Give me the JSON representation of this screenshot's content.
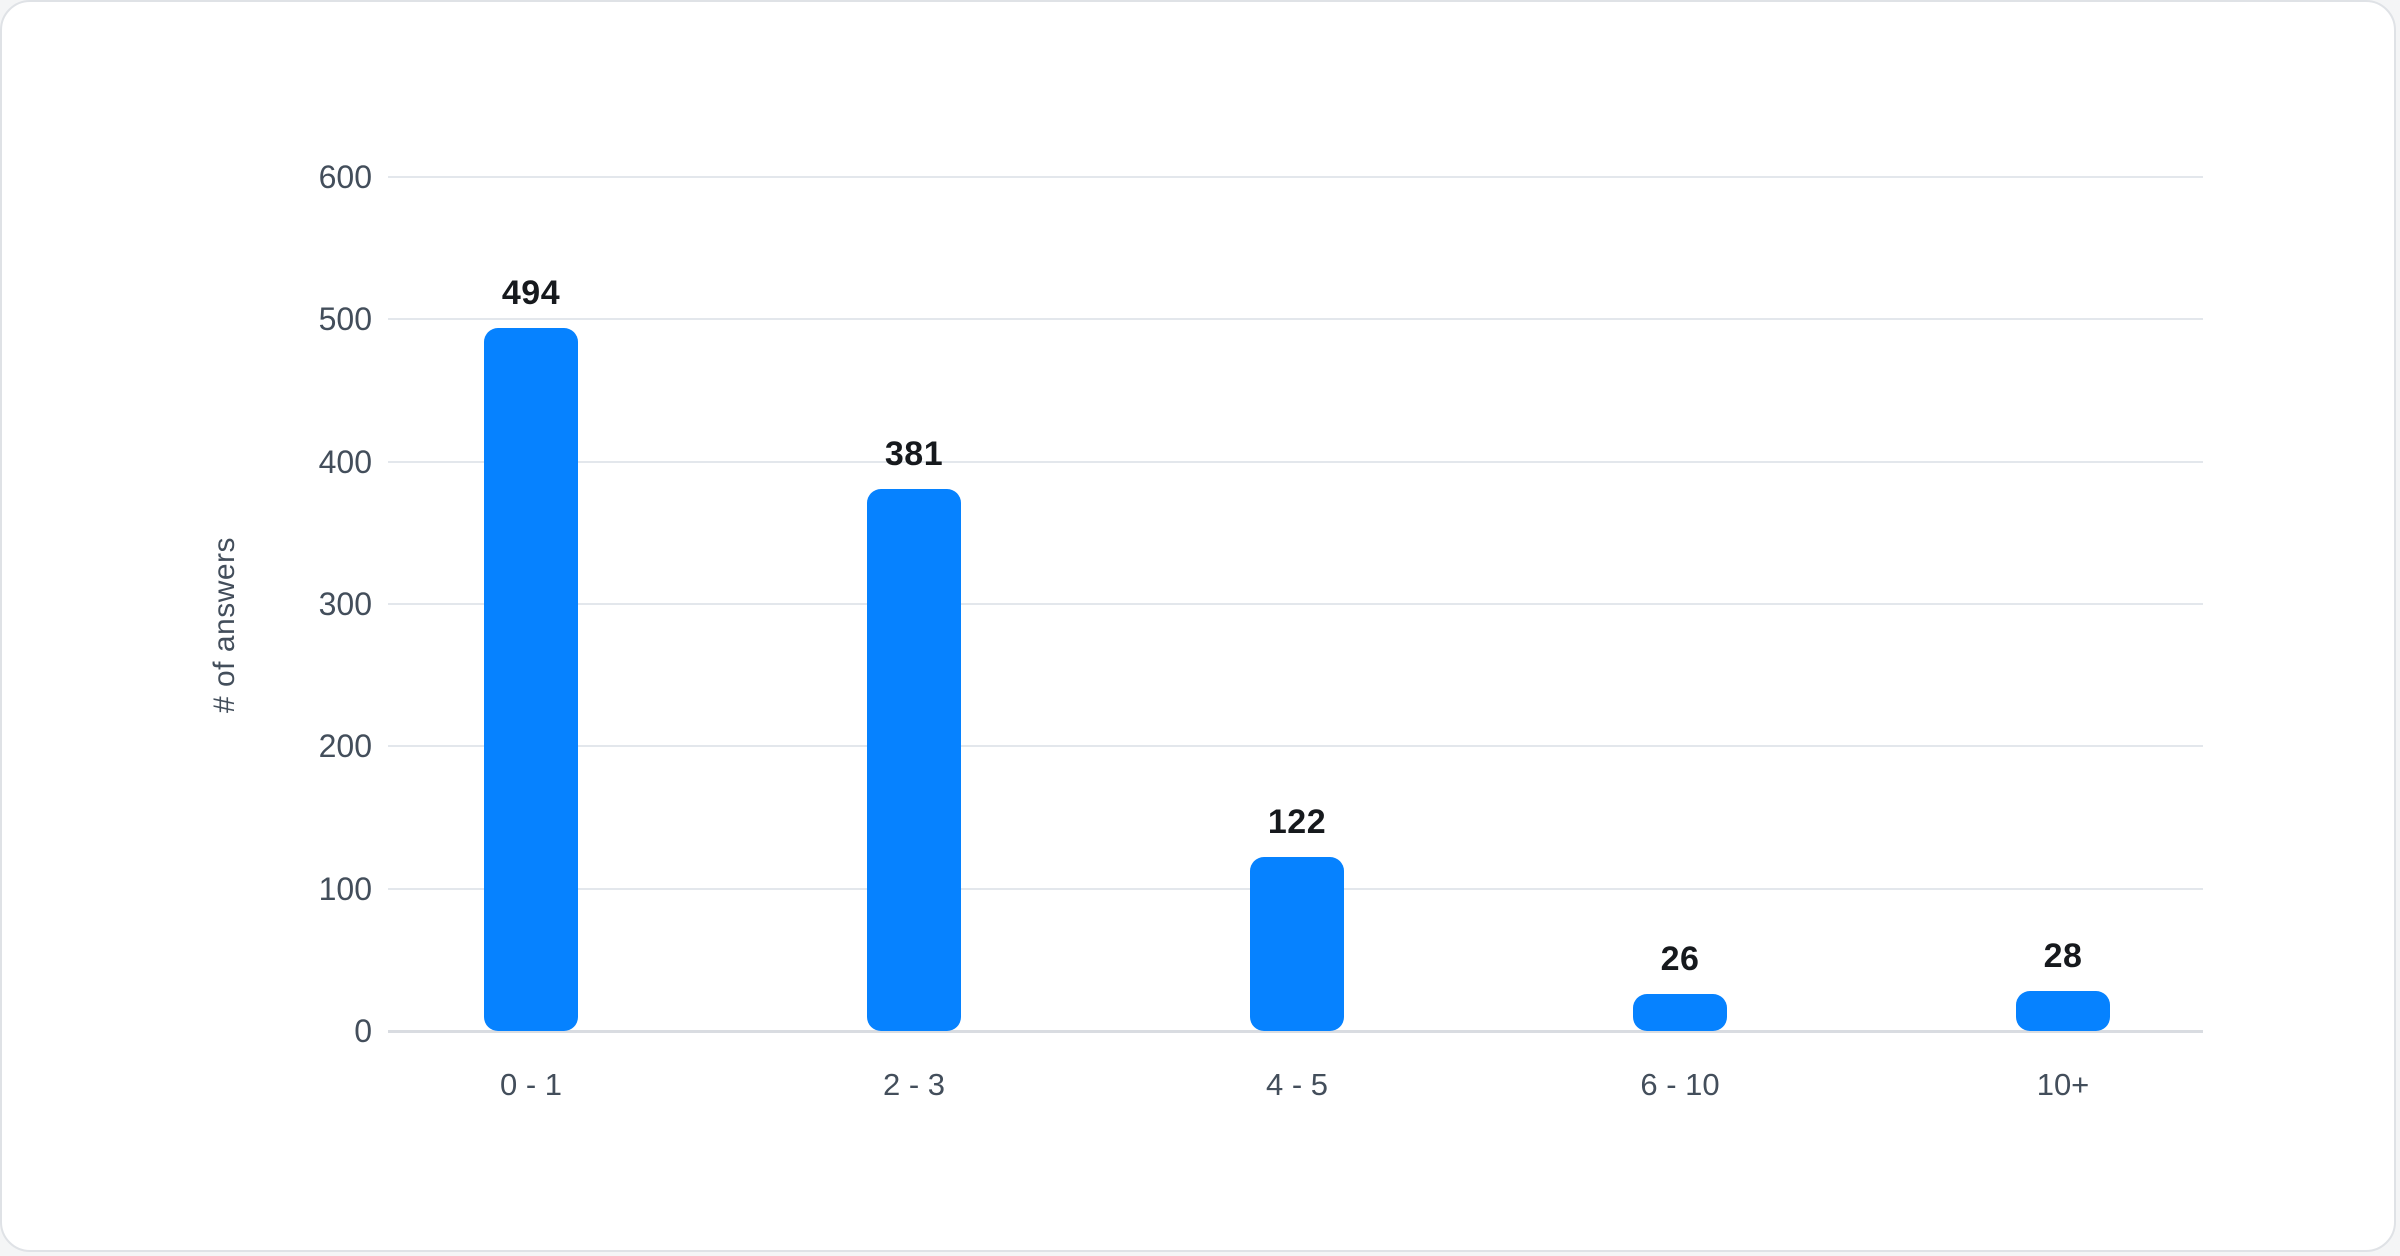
{
  "chart_data": {
    "type": "bar",
    "categories": [
      "0 - 1",
      "2 - 3",
      "4 - 5",
      "6 - 10",
      "10+"
    ],
    "values": [
      494,
      381,
      122,
      26,
      28
    ],
    "value_labels": [
      "494",
      "381",
      "122",
      "26",
      "28"
    ],
    "title": "",
    "xlabel": "",
    "ylabel": "# of answers",
    "y_ticks": [
      0,
      100,
      200,
      300,
      400,
      500,
      600
    ],
    "ylim": [
      0,
      600
    ],
    "grid": true,
    "legend": "none",
    "bar_color": "#0682ff",
    "grid_color": "#e3e7ec",
    "baseline_color": "#d9dce1",
    "tick_label_color": "#434e5b",
    "value_label_color": "#16191d"
  }
}
